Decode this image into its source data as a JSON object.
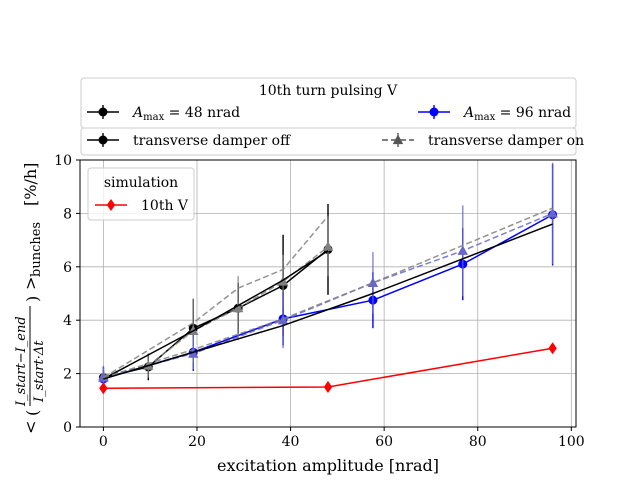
{
  "chart_data": {
    "type": "line",
    "xlabel": "excitation amplitude [nrad]",
    "ylabel": "< ( (I_start − I_end) / (I_start·Δt) )_bunches   [%/h]",
    "ylabel_parts": {
      "lt": "<",
      "lparen": "(",
      "numerator": "I_start−I_end",
      "denominator": "I_start·Δt",
      "rparen": ")",
      "gt": ">",
      "subscript": "bunches",
      "unit": "[%/h]"
    },
    "xlim": [
      -5,
      101
    ],
    "ylim": [
      0,
      10
    ],
    "xticks": [
      0,
      20,
      40,
      60,
      80,
      100
    ],
    "yticks": [
      0,
      2,
      4,
      6,
      8,
      10
    ],
    "grid": true,
    "top_legend": {
      "title": "10th turn pulsing V",
      "row1": [
        {
          "label": "A_max = 48 nrad",
          "math_symbol": "A",
          "math_sub": "max",
          "math_rest": " = 48 nrad",
          "color": "#000000",
          "marker": "circle"
        },
        {
          "label": "A_max = 96 nrad",
          "math_symbol": "A",
          "math_sub": "max",
          "math_rest": " = 96 nrad",
          "color": "#0000ff",
          "marker": "circle"
        }
      ],
      "row2": [
        {
          "label": "transverse damper off",
          "color": "#000000",
          "style": "solid",
          "marker": "circle"
        },
        {
          "label": "transverse damper on",
          "color": "#555555",
          "style": "dashed",
          "marker": "triangle"
        }
      ]
    },
    "inner_legend": {
      "title": "simulation",
      "placement": "upper-left",
      "entries": [
        {
          "label": "10th V",
          "color": "#ff0000",
          "marker": "diamond"
        }
      ]
    },
    "series": [
      {
        "group": "48 nrad",
        "color": "#000000",
        "style": "solid",
        "marker": "circle",
        "x": [
          0,
          9.6,
          19.2,
          28.8,
          38.4,
          48
        ],
        "y": [
          1.85,
          2.25,
          3.7,
          4.45,
          5.3,
          6.65
        ],
        "yerr": [
          0.3,
          0.5,
          1.1,
          0.95,
          1.9,
          1.7
        ]
      },
      {
        "group": "96 nrad",
        "color": "#0000ff",
        "style": "solid",
        "marker": "circle",
        "x": [
          0,
          19.2,
          38.4,
          57.6,
          76.8,
          96
        ],
        "y": [
          1.8,
          2.8,
          4.05,
          4.75,
          6.1,
          7.95
        ],
        "yerr": [
          0.45,
          0.7,
          1.0,
          1.05,
          1.35,
          1.9
        ]
      },
      {
        "group": "48 nrad",
        "color": "#808080",
        "style": "dashed",
        "marker": "triangle",
        "x": [
          0,
          9.6,
          19.2,
          28.8,
          38.4,
          48
        ],
        "y": [
          1.9,
          2.3,
          3.6,
          4.45,
          5.45,
          6.75
        ],
        "yerr": [
          0.3,
          0.45,
          1.2,
          1.2,
          1.0,
          1.1
        ]
      },
      {
        "group": "96 nrad",
        "color": "#6666cc",
        "style": "dashed",
        "marker": "triangle",
        "x": [
          0,
          19.2,
          38.4,
          57.6,
          76.8,
          96
        ],
        "y": [
          1.85,
          2.75,
          4.0,
          5.4,
          6.6,
          8.0
        ],
        "yerr": [
          0.45,
          0.6,
          1.05,
          1.15,
          1.7,
          1.9
        ]
      },
      {
        "group": "fit 48 nrad damper off",
        "color": "#000000",
        "style": "solid",
        "marker": "none",
        "x": [
          0,
          19.2,
          38.4,
          48
        ],
        "y": [
          1.8,
          3.6,
          5.5,
          6.6
        ]
      },
      {
        "group": "fit 96 nrad damper off",
        "color": "#000000",
        "style": "solid",
        "marker": "none",
        "x": [
          0,
          19.2,
          38.4,
          57.6,
          76.8,
          96
        ],
        "y": [
          1.8,
          2.8,
          3.8,
          5.0,
          6.3,
          7.6
        ]
      },
      {
        "group": "fit 48 nrad damper on",
        "color": "#808080",
        "style": "dashed",
        "marker": "none",
        "x": [
          0,
          19.2,
          28.8,
          38.4,
          48
        ],
        "y": [
          1.85,
          3.9,
          5.2,
          5.9,
          7.9
        ]
      },
      {
        "group": "fit 96 nrad damper on",
        "color": "#808080",
        "style": "dashed",
        "marker": "none",
        "x": [
          0,
          19.2,
          38.4,
          57.6,
          76.8,
          96
        ],
        "y": [
          1.85,
          2.9,
          4.05,
          5.4,
          6.8,
          8.2
        ]
      },
      {
        "name": "10th V",
        "color": "#ff0000",
        "style": "solid",
        "marker": "diamond",
        "x": [
          0,
          48,
          96
        ],
        "y": [
          1.45,
          1.5,
          2.95
        ]
      }
    ]
  }
}
